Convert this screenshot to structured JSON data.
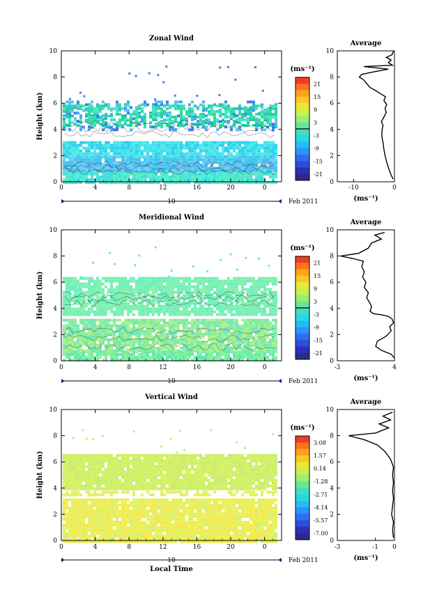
{
  "chart_data": [
    {
      "type": "heatmap",
      "title": "Zonal Wind",
      "ylabel": "Height (km)",
      "xlabel": "",
      "xlim": [
        0,
        26
      ],
      "ylim": [
        0,
        10
      ],
      "x_ticks": [
        "0",
        "4",
        "8",
        "12",
        "16",
        "20",
        "0"
      ],
      "y_ticks": [
        "0",
        "2",
        "4",
        "6",
        "8",
        "10"
      ],
      "date_day": "10",
      "date_label": "Feb 2011",
      "colorbar": {
        "unit": "(ms⁻¹)",
        "ticks": [
          "21",
          "15",
          "9",
          "3",
          "-3",
          "-9",
          "-15",
          "-21"
        ],
        "range": [
          -24,
          24
        ]
      },
      "profile": {
        "title": "Average",
        "xlabel": "(ms⁻¹)",
        "x_ticks": [
          "-10",
          "0"
        ],
        "xlim": [
          -14,
          0
        ],
        "y_ticks": [
          "0",
          "2",
          "4",
          "6",
          "8",
          "10"
        ],
        "points": [
          [
            -0.3,
            0.2
          ],
          [
            -0.8,
            0.5
          ],
          [
            -1.4,
            1.0
          ],
          [
            -1.9,
            1.5
          ],
          [
            -2.3,
            2.0
          ],
          [
            -2.6,
            2.5
          ],
          [
            -2.8,
            3.0
          ],
          [
            -3.0,
            3.3
          ],
          [
            -3.1,
            3.6
          ],
          [
            -3.0,
            4.0
          ],
          [
            -2.8,
            4.3
          ],
          [
            -3.2,
            4.6
          ],
          [
            -2.5,
            5.0
          ],
          [
            -2.0,
            5.3
          ],
          [
            -2.3,
            5.6
          ],
          [
            -1.9,
            5.9
          ],
          [
            -2.6,
            6.2
          ],
          [
            -2.2,
            6.5
          ],
          [
            -3.8,
            6.8
          ],
          [
            -4.8,
            7.0
          ],
          [
            -6.0,
            7.2
          ],
          [
            -6.8,
            7.5
          ],
          [
            -7.6,
            7.8
          ],
          [
            -8.6,
            8.0
          ],
          [
            -8.0,
            8.2
          ],
          [
            -5.0,
            8.4
          ],
          [
            -1.5,
            8.6
          ],
          [
            -7.5,
            8.8
          ],
          [
            -0.5,
            8.9
          ],
          [
            -1.5,
            9.1
          ],
          [
            -0.8,
            9.3
          ],
          [
            -2.0,
            9.5
          ],
          [
            -0.6,
            9.7
          ],
          [
            -0.2,
            10.0
          ]
        ]
      }
    },
    {
      "type": "heatmap",
      "title": "Meridional Wind",
      "ylabel": "Height (km)",
      "xlabel": "",
      "xlim": [
        0,
        26
      ],
      "ylim": [
        0,
        10
      ],
      "x_ticks": [
        "0",
        "4",
        "8",
        "12",
        "16",
        "20",
        "0"
      ],
      "y_ticks": [
        "0",
        "2",
        "4",
        "6",
        "8",
        "10"
      ],
      "date_day": "10",
      "date_label": "Feb 2011",
      "colorbar": {
        "unit": "(ms⁻¹)",
        "ticks": [
          "21",
          "15",
          "9",
          "3",
          "-3",
          "-9",
          "-15",
          "-21"
        ],
        "range": [
          -24,
          24
        ]
      },
      "profile": {
        "title": "Average",
        "xlabel": "(ms⁻¹)",
        "x_ticks": [
          "-3",
          "4"
        ],
        "xlim": [
          -3,
          4
        ],
        "y_ticks": [
          "0",
          "2",
          "4",
          "6",
          "8",
          "10"
        ],
        "points": [
          [
            4.0,
            0.2
          ],
          [
            3.6,
            0.5
          ],
          [
            2.4,
            0.8
          ],
          [
            1.7,
            1.1
          ],
          [
            1.9,
            1.5
          ],
          [
            2.8,
            1.8
          ],
          [
            3.2,
            2.0
          ],
          [
            3.6,
            2.3
          ],
          [
            3.4,
            2.6
          ],
          [
            3.9,
            2.9
          ],
          [
            3.7,
            3.2
          ],
          [
            3.2,
            3.4
          ],
          [
            2.5,
            3.5
          ],
          [
            1.4,
            3.6
          ],
          [
            1.0,
            3.8
          ],
          [
            1.2,
            4.1
          ],
          [
            1.0,
            4.4
          ],
          [
            0.6,
            4.8
          ],
          [
            0.8,
            5.2
          ],
          [
            0.3,
            5.6
          ],
          [
            0.5,
            6.0
          ],
          [
            0.1,
            6.4
          ],
          [
            0.3,
            6.8
          ],
          [
            0.0,
            7.2
          ],
          [
            0.2,
            7.6
          ],
          [
            -1.0,
            7.8
          ],
          [
            -2.6,
            8.0
          ],
          [
            -0.4,
            8.2
          ],
          [
            0.8,
            8.6
          ],
          [
            1.2,
            9.0
          ],
          [
            2.4,
            9.3
          ],
          [
            1.6,
            9.6
          ],
          [
            2.8,
            9.8
          ]
        ]
      }
    },
    {
      "type": "heatmap",
      "title": "Vertical Wind",
      "ylabel": "Height (km)",
      "xlabel": "Local Time",
      "xlim": [
        0,
        26
      ],
      "ylim": [
        0,
        10
      ],
      "x_ticks": [
        "0",
        "4",
        "8",
        "12",
        "16",
        "20",
        "0"
      ],
      "y_ticks": [
        "0",
        "2",
        "4",
        "6",
        "8",
        "10"
      ],
      "date_day": "10",
      "date_label": "Feb 2011",
      "colorbar": {
        "unit": "(ms⁻¹)",
        "ticks": [
          "3.08",
          "1.57",
          "0.14",
          "-1.28",
          "-2.71",
          "-4.14",
          "-5.57",
          "-7.00"
        ],
        "range": [
          -7.7,
          3.8
        ]
      },
      "profile": {
        "title": "Average",
        "xlabel": "(ms⁻¹)",
        "x_ticks": [
          "-3",
          "-1",
          "0"
        ],
        "xlim": [
          -3,
          0
        ],
        "y_ticks": [
          "0",
          "2",
          "4",
          "6",
          "8",
          "10"
        ],
        "points": [
          [
            -0.05,
            0.2
          ],
          [
            -0.1,
            0.8
          ],
          [
            -0.05,
            1.4
          ],
          [
            -0.15,
            2.0
          ],
          [
            -0.1,
            2.6
          ],
          [
            -0.05,
            3.2
          ],
          [
            -0.1,
            3.8
          ],
          [
            -0.05,
            4.4
          ],
          [
            -0.1,
            5.0
          ],
          [
            -0.05,
            5.6
          ],
          [
            -0.2,
            6.2
          ],
          [
            -0.5,
            6.8
          ],
          [
            -0.9,
            7.3
          ],
          [
            -1.6,
            7.7
          ],
          [
            -2.4,
            8.0
          ],
          [
            -1.0,
            8.2
          ],
          [
            -0.3,
            8.6
          ],
          [
            -0.8,
            8.9
          ],
          [
            -0.2,
            9.2
          ],
          [
            -0.6,
            9.5
          ],
          [
            -0.1,
            9.8
          ]
        ]
      }
    }
  ]
}
